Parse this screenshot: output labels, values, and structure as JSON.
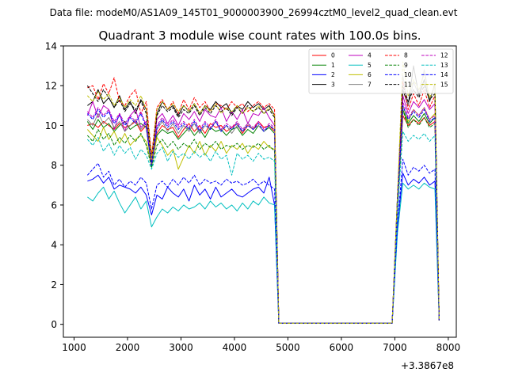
{
  "chart_data": {
    "type": "line",
    "suptitle": "Data file: modeM0/AS1A09_145T01_9000003900_26994cztM0_level2_quad_clean.evt",
    "title": "Quadrant 3 module wise count rates with 100.0s bins.",
    "xlabel": "",
    "ylabel": "",
    "x_offset_label": "+3.3867e8",
    "xlim": [
      800,
      8150
    ],
    "ylim": [
      -0.65,
      14
    ],
    "xticks": [
      1000,
      2000,
      3000,
      4000,
      5000,
      6000,
      7000,
      8000
    ],
    "yticks": [
      0,
      2,
      4,
      6,
      8,
      10,
      12,
      14
    ],
    "x": [
      1250,
      1350,
      1450,
      1550,
      1650,
      1750,
      1850,
      1950,
      2050,
      2150,
      2250,
      2350,
      2450,
      2550,
      2650,
      2750,
      2850,
      2950,
      3050,
      3150,
      3250,
      3350,
      3450,
      3550,
      3650,
      3750,
      3850,
      3950,
      4050,
      4150,
      4250,
      4350,
      4450,
      4550,
      4650,
      4750,
      4830,
      4950,
      5950,
      6950,
      7050,
      7150,
      7250,
      7350,
      7450,
      7550,
      7650,
      7750,
      7830
    ],
    "legend_ncol": 4,
    "legend_position": "top-right",
    "series": [
      {
        "name": "0",
        "color": "#ff0000",
        "style": "solid",
        "values": [
          10.0,
          10.1,
          9.9,
          10.2,
          10.0,
          9.8,
          10.1,
          9.9,
          10.0,
          10.2,
          9.7,
          10.0,
          8.0,
          9.6,
          10.0,
          9.8,
          9.9,
          9.4,
          9.8,
          10.1,
          9.7,
          10.0,
          9.6,
          10.1,
          9.9,
          10.0,
          9.7,
          9.9,
          10.1,
          9.6,
          10.0,
          9.8,
          10.2,
          9.9,
          10.0,
          9.7,
          0.05,
          0.05,
          0.05,
          0.05,
          6.0,
          10.5,
          10.0,
          10.3,
          10.1,
          10.4,
          10.0,
          10.2,
          0.2
        ]
      },
      {
        "name": "1",
        "color": "#008000",
        "style": "solid",
        "values": [
          10.2,
          9.8,
          10.3,
          9.9,
          10.1,
          9.7,
          10.0,
          10.2,
          9.8,
          10.0,
          10.1,
          9.9,
          7.9,
          9.5,
          9.8,
          9.6,
          9.7,
          9.3,
          9.6,
          9.9,
          9.5,
          9.8,
          9.4,
          9.9,
          9.7,
          9.8,
          9.5,
          9.8,
          9.9,
          9.5,
          9.8,
          9.6,
          10.0,
          9.7,
          9.9,
          9.6,
          0.05,
          0.05,
          0.05,
          0.05,
          5.9,
          10.8,
          10.1,
          10.5,
          10.2,
          10.6,
          10.1,
          10.4,
          0.2
        ]
      },
      {
        "name": "2",
        "color": "#0000ff",
        "style": "solid",
        "values": [
          7.2,
          7.3,
          7.5,
          7.1,
          7.4,
          6.8,
          7.0,
          6.9,
          6.8,
          6.6,
          6.9,
          6.5,
          5.5,
          6.5,
          6.3,
          6.9,
          6.6,
          6.4,
          6.8,
          6.2,
          7.0,
          6.5,
          6.8,
          6.3,
          6.9,
          6.4,
          6.6,
          6.8,
          6.5,
          6.4,
          6.6,
          6.8,
          6.9,
          6.6,
          7.4,
          6.0,
          0.05,
          0.05,
          0.05,
          0.05,
          4.9,
          7.6,
          7.0,
          7.3,
          7.1,
          7.4,
          7.0,
          7.2,
          0.2
        ]
      },
      {
        "name": "3",
        "color": "#000000",
        "style": "solid",
        "values": [
          11.0,
          11.2,
          11.8,
          11.1,
          11.4,
          10.9,
          11.5,
          10.8,
          11.2,
          10.6,
          11.3,
          10.8,
          8.4,
          10.6,
          11.2,
          10.8,
          11.0,
          10.5,
          11.0,
          10.7,
          11.1,
          10.6,
          11.0,
          10.8,
          11.2,
          10.9,
          11.1,
          10.6,
          11.0,
          10.8,
          11.2,
          10.9,
          11.1,
          10.8,
          11.0,
          10.5,
          0.05,
          0.05,
          0.05,
          0.05,
          6.5,
          11.8,
          11.0,
          13.0,
          11.5,
          12.3,
          11.2,
          12.1,
          0.2
        ]
      },
      {
        "name": "4",
        "color": "#bf00bf",
        "style": "solid",
        "values": [
          10.5,
          11.2,
          10.4,
          11.0,
          10.8,
          9.8,
          10.6,
          9.7,
          10.5,
          10.8,
          9.9,
          10.2,
          8.3,
          10.3,
          10.6,
          10.1,
          10.5,
          10.0,
          10.6,
          10.3,
          10.7,
          10.2,
          10.8,
          10.5,
          10.4,
          10.9,
          10.2,
          10.7,
          10.3,
          10.8,
          10.1,
          10.6,
          10.5,
          10.9,
          10.4,
          10.0,
          0.05,
          0.05,
          0.05,
          0.05,
          6.3,
          11.5,
          10.6,
          11.2,
          10.9,
          11.3,
          10.8,
          11.1,
          0.2
        ]
      },
      {
        "name": "5",
        "color": "#00bfbf",
        "style": "solid",
        "values": [
          6.4,
          6.2,
          6.6,
          6.9,
          6.3,
          6.7,
          6.1,
          5.6,
          6.0,
          6.4,
          5.8,
          6.2,
          4.9,
          5.4,
          5.8,
          5.6,
          5.9,
          5.7,
          6.0,
          5.8,
          5.9,
          6.1,
          5.8,
          6.2,
          5.9,
          6.1,
          5.8,
          6.0,
          5.7,
          6.1,
          5.8,
          6.2,
          6.0,
          6.4,
          6.1,
          6.0,
          0.05,
          0.05,
          0.05,
          0.05,
          4.6,
          7.1,
          6.8,
          7.0,
          6.8,
          7.1,
          6.9,
          6.8,
          0.2
        ]
      },
      {
        "name": "6",
        "color": "#bfbf00",
        "style": "solid",
        "values": [
          9.8,
          9.5,
          9.2,
          9.9,
          9.3,
          9.7,
          9.1,
          9.6,
          9.0,
          9.3,
          9.5,
          9.2,
          8.0,
          9.4,
          9.0,
          8.5,
          8.8,
          7.8,
          8.4,
          9.0,
          8.6,
          9.2,
          8.5,
          9.0,
          8.7,
          9.2,
          8.6,
          9.0,
          8.8,
          9.1,
          8.6,
          9.0,
          8.8,
          9.2,
          8.9,
          8.8,
          0.05,
          0.05,
          0.05,
          0.05,
          6.2,
          11.0,
          10.2,
          10.8,
          10.5,
          10.9,
          10.3,
          10.6,
          0.2
        ]
      },
      {
        "name": "7",
        "color": "#808080",
        "style": "solid",
        "values": [
          10.3,
          10.0,
          10.6,
          10.1,
          10.4,
          9.9,
          10.2,
          9.7,
          10.0,
          10.3,
          9.8,
          10.1,
          8.1,
          9.8,
          10.2,
          9.7,
          10.1,
          9.6,
          10.0,
          9.7,
          10.1,
          9.6,
          10.0,
          9.8,
          10.2,
          9.7,
          10.0,
          9.6,
          10.0,
          9.7,
          10.1,
          9.8,
          10.0,
          9.7,
          10.0,
          9.8,
          0.05,
          0.05,
          0.05,
          0.05,
          6.4,
          12.5,
          11.0,
          12.2,
          11.5,
          12.8,
          11.3,
          12.0,
          0.2
        ]
      },
      {
        "name": "8",
        "color": "#ff0000",
        "style": "dashed",
        "values": [
          11.9,
          12.0,
          11.3,
          12.1,
          11.6,
          12.4,
          11.2,
          11.0,
          11.5,
          11.8,
          10.6,
          11.2,
          8.5,
          10.9,
          11.3,
          10.8,
          11.2,
          10.6,
          11.3,
          10.8,
          11.4,
          10.9,
          11.2,
          10.7,
          11.1,
          11.0,
          10.8,
          11.2,
          10.9,
          11.1,
          10.7,
          11.0,
          11.2,
          10.9,
          11.1,
          10.8,
          0.05,
          0.05,
          0.05,
          0.05,
          6.3,
          12.2,
          10.8,
          11.6,
          11.0,
          11.8,
          10.9,
          11.5,
          0.2
        ]
      },
      {
        "name": "9",
        "color": "#008000",
        "style": "dashed",
        "values": [
          9.5,
          9.2,
          9.8,
          9.3,
          9.6,
          9.0,
          9.4,
          9.1,
          9.5,
          9.2,
          9.6,
          9.0,
          7.9,
          9.0,
          9.3,
          8.9,
          9.2,
          8.8,
          9.1,
          8.9,
          9.3,
          8.8,
          9.1,
          8.9,
          9.2,
          8.8,
          9.0,
          8.9,
          9.1,
          8.8,
          9.0,
          8.9,
          9.1,
          8.8,
          9.0,
          8.7,
          0.05,
          0.05,
          0.05,
          0.05,
          5.9,
          10.8,
          9.9,
          10.3,
          10.0,
          10.4,
          9.9,
          10.1,
          0.2
        ]
      },
      {
        "name": "10",
        "color": "#0000ff",
        "style": "dashed",
        "values": [
          7.5,
          7.8,
          8.1,
          7.4,
          7.7,
          7.0,
          7.3,
          6.9,
          7.2,
          7.0,
          7.4,
          7.1,
          5.8,
          7.0,
          7.2,
          6.9,
          7.3,
          7.0,
          7.4,
          7.1,
          7.5,
          7.0,
          7.3,
          7.1,
          7.2,
          7.0,
          7.3,
          7.1,
          7.2,
          7.0,
          7.1,
          7.3,
          7.0,
          7.2,
          7.0,
          6.8,
          0.05,
          0.05,
          0.05,
          0.05,
          5.0,
          8.3,
          7.5,
          7.9,
          7.7,
          8.0,
          7.6,
          7.8,
          0.2
        ]
      },
      {
        "name": "11",
        "color": "#000000",
        "style": "dashed",
        "values": [
          12.0,
          11.6,
          11.2,
          11.8,
          11.4,
          10.9,
          11.3,
          10.7,
          11.1,
          10.8,
          11.2,
          10.6,
          8.2,
          10.5,
          11.0,
          10.7,
          10.9,
          10.4,
          10.8,
          10.6,
          11.0,
          10.5,
          10.9,
          10.6,
          11.0,
          10.7,
          10.9,
          10.5,
          10.9,
          10.6,
          11.0,
          10.7,
          10.9,
          10.6,
          10.8,
          10.4,
          0.05,
          0.05,
          0.05,
          0.05,
          6.4,
          12.0,
          11.2,
          11.8,
          11.4,
          12.0,
          11.3,
          11.6,
          0.2
        ]
      },
      {
        "name": "12",
        "color": "#bf00bf",
        "style": "dashed",
        "values": [
          10.7,
          10.4,
          10.9,
          10.5,
          10.8,
          10.2,
          10.6,
          10.1,
          10.5,
          10.2,
          10.7,
          10.0,
          8.1,
          10.0,
          10.4,
          10.0,
          10.3,
          9.9,
          10.2,
          9.9,
          10.3,
          9.8,
          10.2,
          9.9,
          10.3,
          9.8,
          10.1,
          9.9,
          10.2,
          9.8,
          10.1,
          9.9,
          10.2,
          9.8,
          10.1,
          9.9,
          0.05,
          0.05,
          0.05,
          0.05,
          6.2,
          11.2,
          10.4,
          10.8,
          10.5,
          10.9,
          10.3,
          10.5,
          0.2
        ]
      },
      {
        "name": "13",
        "color": "#00bfbf",
        "style": "dashed",
        "values": [
          9.3,
          9.0,
          9.4,
          8.7,
          9.1,
          8.5,
          9.0,
          8.6,
          8.9,
          8.3,
          8.8,
          8.5,
          7.8,
          8.6,
          8.9,
          8.2,
          8.7,
          8.4,
          8.6,
          8.3,
          8.7,
          8.4,
          8.6,
          8.2,
          8.7,
          8.3,
          8.5,
          7.5,
          8.6,
          8.3,
          8.5,
          8.2,
          8.6,
          8.3,
          8.4,
          8.2,
          0.05,
          0.05,
          0.05,
          0.05,
          5.6,
          9.7,
          9.2,
          9.5,
          9.3,
          9.6,
          9.2,
          9.5,
          0.2
        ]
      },
      {
        "name": "14",
        "color": "#0000ff",
        "style": "dashed",
        "values": [
          10.6,
          10.3,
          10.8,
          10.4,
          10.7,
          10.1,
          10.5,
          10.0,
          10.4,
          10.1,
          10.6,
          9.9,
          8.0,
          9.9,
          10.3,
          9.9,
          10.2,
          9.8,
          10.1,
          9.8,
          10.2,
          9.7,
          10.1,
          9.8,
          10.2,
          9.7,
          10.0,
          9.8,
          10.1,
          9.7,
          10.0,
          9.8,
          10.1,
          9.7,
          10.0,
          9.8,
          0.05,
          0.05,
          0.05,
          0.05,
          6.1,
          11.0,
          10.3,
          10.7,
          10.4,
          10.8,
          10.2,
          10.4,
          0.2
        ]
      },
      {
        "name": "15",
        "color": "#bfbf00",
        "style": "dashed",
        "values": [
          11.5,
          11.2,
          11.7,
          11.3,
          11.6,
          11.0,
          11.4,
          10.9,
          11.3,
          11.0,
          11.5,
          10.8,
          8.3,
          10.8,
          11.2,
          10.8,
          11.1,
          10.7,
          11.0,
          10.7,
          11.1,
          10.6,
          11.0,
          10.7,
          11.1,
          10.6,
          10.9,
          10.7,
          11.0,
          10.6,
          10.9,
          10.7,
          11.0,
          10.6,
          10.9,
          10.5,
          0.05,
          0.05,
          0.05,
          0.05,
          6.5,
          13.2,
          11.5,
          12.3,
          11.8,
          12.6,
          11.4,
          12.0,
          0.2
        ]
      }
    ]
  }
}
